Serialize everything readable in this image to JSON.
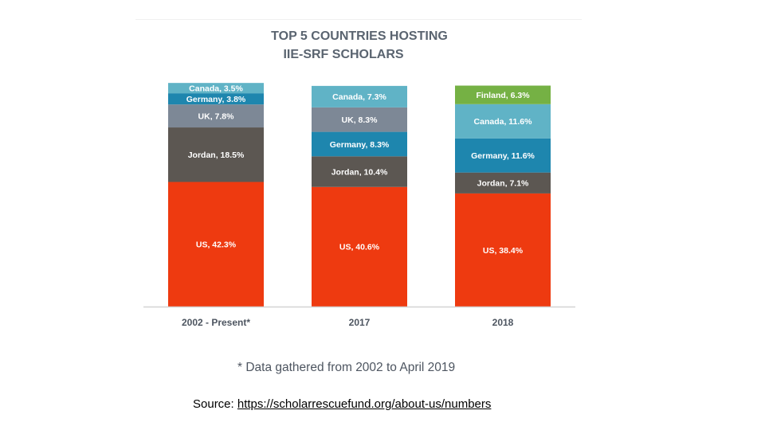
{
  "chart_data": {
    "type": "bar",
    "stacked": true,
    "title": [
      "TOP 5 COUNTRIES HOSTING",
      "IIE-SRF SCHOLARS"
    ],
    "categories": [
      "2002 - Present*",
      "2017",
      "2018"
    ],
    "colors": {
      "US": "#ee3a10",
      "Jordan": "#5c5752",
      "UK": "#7d8896",
      "Germany": "#1e86ae",
      "Canada": "#60b3c6",
      "Finland": "#75b144",
      "axis": "#d4d4d4",
      "title": "#5a6470"
    },
    "bars": [
      {
        "category": "2002 - Present*",
        "segments": [
          {
            "country": "US",
            "value": 42.3,
            "label": "US, 42.3%"
          },
          {
            "country": "Jordan",
            "value": 18.5,
            "label": "Jordan, 18.5%"
          },
          {
            "country": "UK",
            "value": 7.8,
            "label": "UK, 7.8%"
          },
          {
            "country": "Germany",
            "value": 3.8,
            "label": "Germany, 3.8%"
          },
          {
            "country": "Canada",
            "value": 3.5,
            "label": "Canada, 3.5%"
          }
        ]
      },
      {
        "category": "2017",
        "segments": [
          {
            "country": "US",
            "value": 40.6,
            "label": "US, 40.6%"
          },
          {
            "country": "Jordan",
            "value": 10.4,
            "label": "Jordan, 10.4%"
          },
          {
            "country": "Germany",
            "value": 8.3,
            "label": "Germany, 8.3%"
          },
          {
            "country": "UK",
            "value": 8.3,
            "label": "UK, 8.3%"
          },
          {
            "country": "Canada",
            "value": 7.3,
            "label": "Canada, 7.3%"
          }
        ]
      },
      {
        "category": "2018",
        "segments": [
          {
            "country": "US",
            "value": 38.4,
            "label": "US, 38.4%"
          },
          {
            "country": "Jordan",
            "value": 7.1,
            "label": "Jordan, 7.1%"
          },
          {
            "country": "Germany",
            "value": 11.6,
            "label": "Germany, 11.6%"
          },
          {
            "country": "Canada",
            "value": 11.6,
            "label": "Canada, 11.6%"
          },
          {
            "country": "Finland",
            "value": 6.3,
            "label": "Finland, 6.3%"
          }
        ]
      }
    ],
    "ylim": [
      0,
      80
    ],
    "xlabel": "",
    "ylabel": ""
  },
  "footnote": "* Data gathered from 2002 to April 2019",
  "source": {
    "prefix": "Source: ",
    "link_text": "https://scholarrescuefund.org/about-us/numbers"
  }
}
